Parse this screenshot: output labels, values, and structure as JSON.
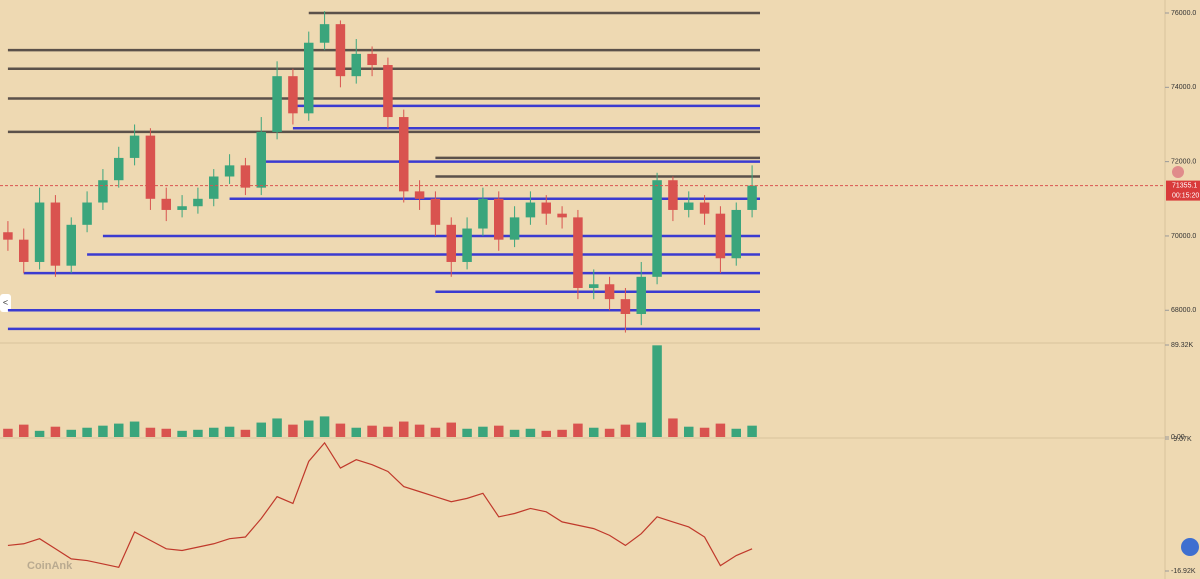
{
  "chart_data": [
    {
      "type": "candlestick",
      "open": [
        70100,
        69900,
        69300,
        70900,
        69200,
        70300,
        70900,
        71500,
        72100,
        72700,
        71000,
        70700,
        70800,
        71000,
        71600,
        71900,
        71300,
        72800,
        74300,
        73300,
        75200,
        75700,
        74300,
        74900,
        74600,
        73200,
        71200,
        71000,
        70300,
        69300,
        70200,
        71000,
        69900,
        70500,
        70900,
        70600,
        70500,
        68600,
        68700,
        68300,
        67900,
        68900,
        71500,
        70700,
        70900,
        70600,
        69400,
        70700
      ],
      "high": [
        70400,
        70200,
        71300,
        71100,
        70500,
        71200,
        71800,
        72400,
        73000,
        72900,
        71300,
        71100,
        71300,
        71800,
        72200,
        72100,
        73200,
        74700,
        74500,
        75500,
        76050,
        75800,
        75300,
        75100,
        74800,
        73400,
        71500,
        71200,
        70500,
        70500,
        71300,
        71200,
        70800,
        71200,
        71100,
        70800,
        70700,
        69100,
        68900,
        68600,
        69300,
        71700,
        71600,
        71200,
        71100,
        70800,
        70900,
        71900
      ],
      "low": [
        69600,
        69000,
        69100,
        68900,
        69000,
        70100,
        70700,
        71300,
        71900,
        70700,
        70400,
        70500,
        70600,
        70800,
        71400,
        71100,
        71100,
        72600,
        73000,
        73100,
        75000,
        74000,
        74100,
        74300,
        72900,
        70900,
        70700,
        70000,
        68900,
        69100,
        70000,
        69600,
        69700,
        70300,
        70300,
        70200,
        68300,
        68300,
        68000,
        67400,
        67600,
        68700,
        70400,
        70500,
        70300,
        69000,
        69200,
        70500
      ],
      "close": [
        69900,
        69300,
        70900,
        69200,
        70300,
        70900,
        71500,
        72100,
        72700,
        71000,
        70700,
        70800,
        71000,
        71600,
        71900,
        71300,
        72800,
        74300,
        73300,
        75200,
        75700,
        74300,
        74900,
        74600,
        73200,
        71200,
        71000,
        70300,
        69300,
        70200,
        71000,
        69900,
        70500,
        70900,
        70600,
        70500,
        68600,
        68700,
        68300,
        67900,
        68900,
        71500,
        70700,
        70900,
        70600,
        69400,
        70700,
        71355.1
      ],
      "up_color": "#3aa57c",
      "down_color": "#d9534f",
      "ylim": [
        67200,
        76350
      ],
      "yticks": [
        {
          "value": 68000,
          "label": "68000.0"
        },
        {
          "value": 70000,
          "label": "70000.0"
        },
        {
          "value": 72000,
          "label": "72000.0"
        },
        {
          "value": 74000,
          "label": "74000.0"
        },
        {
          "value": 76000,
          "label": "76000.0"
        }
      ],
      "last_price": 71355.1,
      "countdown": "00:15:20",
      "levels": [
        {
          "price": 76000,
          "start": 19,
          "color": "#5b514a"
        },
        {
          "price": 75000,
          "start": 0,
          "color": "#5b514a"
        },
        {
          "price": 74500,
          "start": 0,
          "color": "#5b514a"
        },
        {
          "price": 73700,
          "start": 0,
          "color": "#5b514a"
        },
        {
          "price": 72800,
          "start": 0,
          "color": "#5b514a"
        },
        {
          "price": 72100,
          "start": 27,
          "color": "#5b514a"
        },
        {
          "price": 71600,
          "start": 27,
          "color": "#5b514a"
        },
        {
          "price": 73500,
          "start": 18,
          "color": "#3b3bd0"
        },
        {
          "price": 72900,
          "start": 18,
          "color": "#3b3bd0"
        },
        {
          "price": 72000,
          "start": 16,
          "color": "#3b3bd0"
        },
        {
          "price": 71000,
          "start": 14,
          "color": "#3b3bd0"
        },
        {
          "price": 70000,
          "start": 6,
          "color": "#3b3bd0"
        },
        {
          "price": 69500,
          "start": 5,
          "color": "#3b3bd0"
        },
        {
          "price": 69000,
          "start": 1,
          "color": "#3b3bd0"
        },
        {
          "price": 68500,
          "start": 27,
          "color": "#3b3bd0"
        },
        {
          "price": 68000,
          "start": 0,
          "color": "#3b3bd0"
        },
        {
          "price": 67500,
          "start": 0,
          "color": "#3b3bd0"
        }
      ]
    },
    {
      "type": "bar",
      "values": [
        8,
        12,
        6,
        10,
        7,
        9,
        11,
        13,
        15,
        9,
        8,
        6,
        7,
        9,
        10,
        7,
        14,
        18,
        12,
        16,
        20,
        13,
        9,
        11,
        10,
        15,
        12,
        9,
        14,
        8,
        10,
        11,
        7,
        8,
        6,
        7,
        13,
        9,
        8,
        12,
        14,
        89,
        18,
        10,
        9,
        13,
        8,
        11
      ],
      "ylim": [
        0,
        89.32
      ],
      "yticks": [
        {
          "value": 0,
          "label": "0.00"
        },
        {
          "value": 89.32,
          "label": "89.32K"
        }
      ]
    },
    {
      "type": "line",
      "color": "#c0392b",
      "up_color": "#3aa57c",
      "values": [
        -15.4,
        -15.3,
        -15.0,
        -15.6,
        -16.2,
        -16.3,
        -16.5,
        -16.7,
        -14.6,
        -15.1,
        -15.6,
        -15.7,
        -15.5,
        -15.3,
        -15.0,
        -14.9,
        -13.8,
        -12.5,
        -12.9,
        -10.4,
        -9.3,
        -10.8,
        -10.3,
        -10.6,
        -11.0,
        -11.9,
        -12.2,
        -12.5,
        -12.8,
        -12.6,
        -12.3,
        -13.7,
        -13.5,
        -13.2,
        -13.4,
        -14.0,
        -14.2,
        -14.4,
        -14.8,
        -15.4,
        -14.7,
        -13.7,
        -14.0,
        -14.3,
        -14.9,
        -16.6,
        -16.0,
        -15.6
      ],
      "ylim": [
        -16.92,
        -9.07
      ],
      "yticks": [
        {
          "value": -9.07,
          "label": "-9.07K"
        },
        {
          "value": -16.92,
          "label": "-16.92K"
        }
      ]
    }
  ],
  "watermark": "CoinAnk",
  "back_button": "<"
}
